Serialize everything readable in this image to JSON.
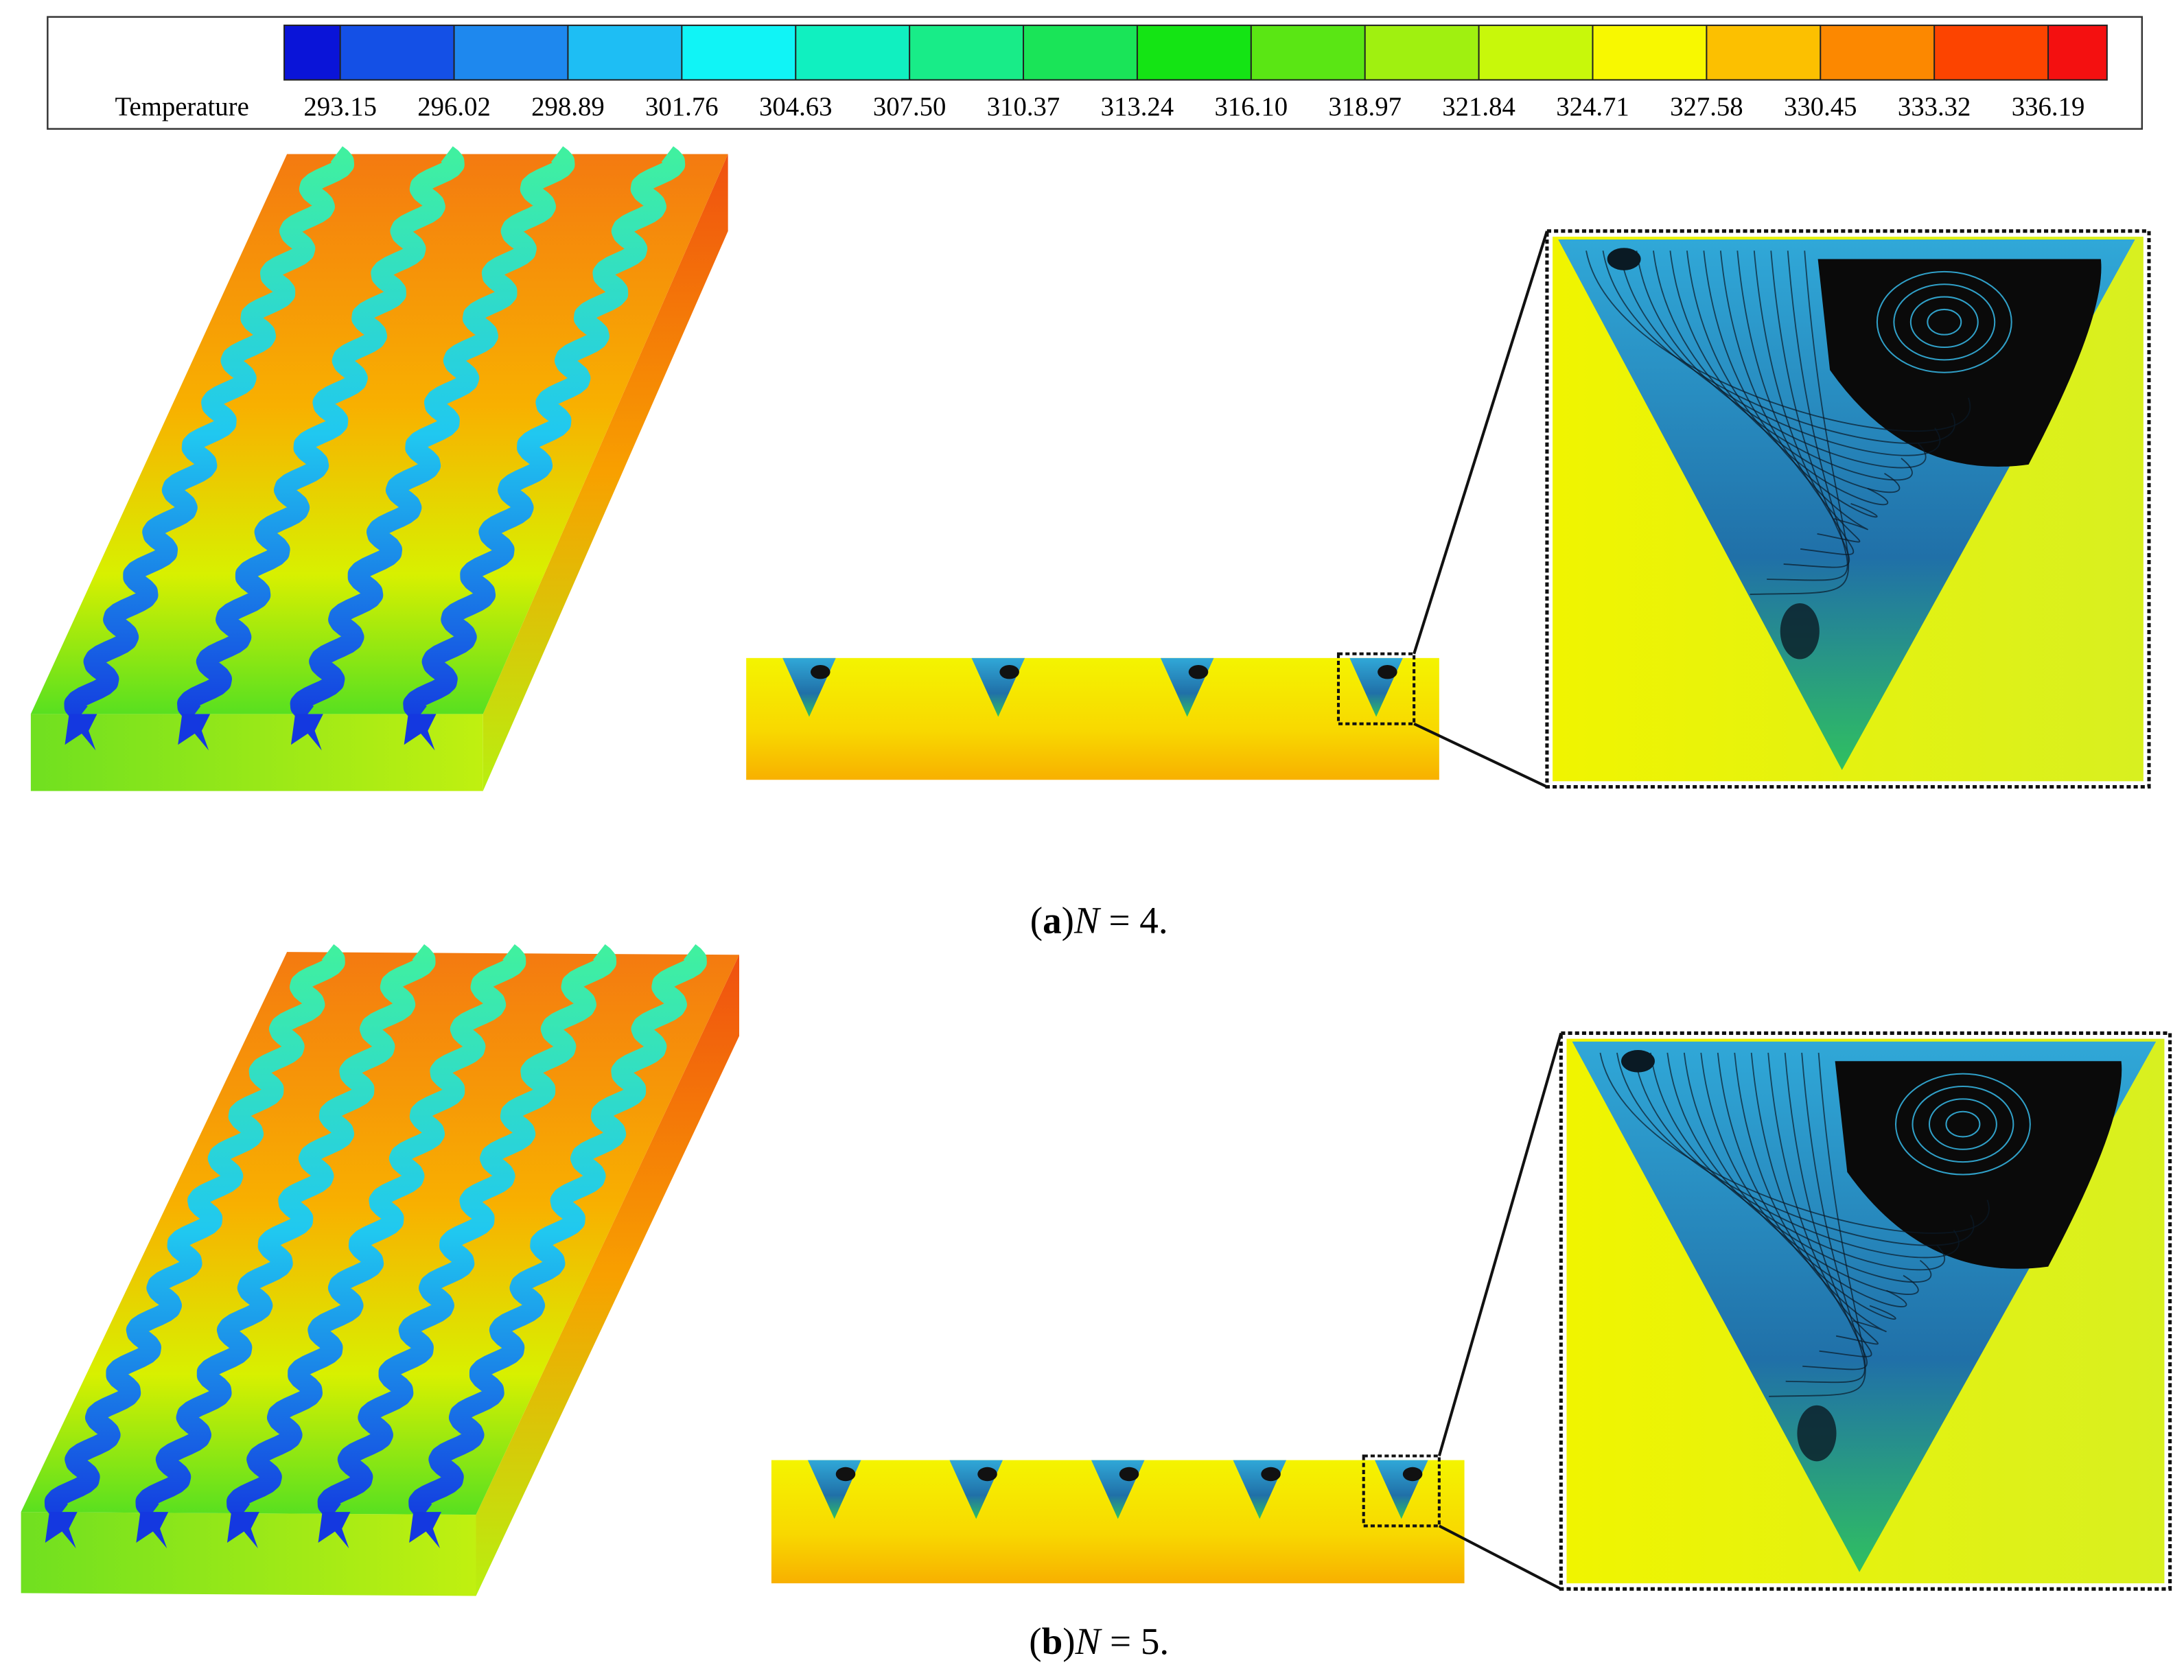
{
  "colorbar": {
    "label": "Temperature",
    "ticks": [
      293.15,
      296.02,
      298.89,
      301.76,
      304.63,
      {
        "value": 307.5,
        "label": "307.50"
      },
      310.37,
      313.24,
      {
        "value": 316.1,
        "label": "316.10"
      },
      318.97,
      321.84,
      324.71,
      327.58,
      330.45,
      333.32,
      336.19
    ],
    "colors": [
      "#0a14d8",
      "#1450e6",
      "#1e88ee",
      "#1ebef4",
      "#10f4f6",
      "#10f0c0",
      "#18ec88",
      "#1ae458",
      "#14e414",
      "#5ae614",
      "#a0f010",
      "#c8f80a",
      "#f8f800",
      "#fcc000",
      "#fc8800",
      "#fc4400",
      "#f41010"
    ]
  },
  "panels": [
    {
      "caption": [
        "(",
        "a",
        ")",
        "N",
        " = 4."
      ],
      "channels": 4
    },
    {
      "caption": [
        "(",
        "b",
        ")",
        "N",
        " = 5."
      ],
      "channels": 5
    }
  ]
}
